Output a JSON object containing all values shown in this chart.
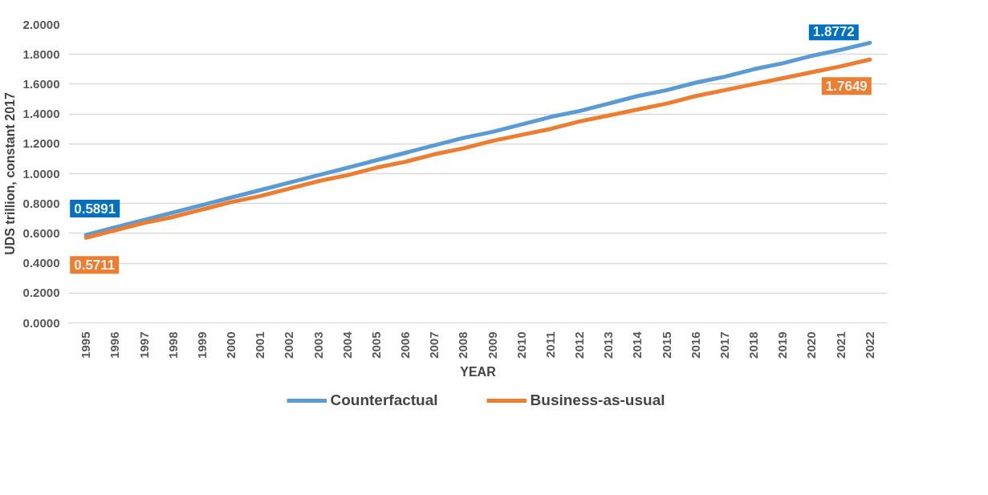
{
  "chart_data": {
    "type": "line",
    "xlabel": "YEAR",
    "ylabel": "UDS trillion, constant 2017",
    "categories": [
      "1995",
      "1996",
      "1997",
      "1998",
      "1999",
      "2000",
      "2001",
      "2002",
      "2003",
      "2004",
      "2005",
      "2006",
      "2007",
      "2008",
      "2009",
      "2010",
      "2011",
      "2012",
      "2013",
      "2014",
      "2015",
      "2016",
      "2017",
      "2018",
      "2019",
      "2020",
      "2021",
      "2022"
    ],
    "series": [
      {
        "name": "Counterfactual",
        "color": "#5b9bd5",
        "values": [
          0.5891,
          0.64,
          0.69,
          0.74,
          0.79,
          0.84,
          0.89,
          0.94,
          0.99,
          1.04,
          1.09,
          1.14,
          1.19,
          1.24,
          1.28,
          1.33,
          1.38,
          1.42,
          1.47,
          1.52,
          1.56,
          1.61,
          1.65,
          1.7,
          1.74,
          1.79,
          1.83,
          1.8772
        ],
        "value_labels": [
          "0.5891",
          null,
          null,
          null,
          null,
          null,
          null,
          null,
          null,
          null,
          null,
          null,
          null,
          null,
          null,
          null,
          null,
          null,
          null,
          null,
          null,
          null,
          null,
          null,
          null,
          null,
          null,
          "1.8772"
        ]
      },
      {
        "name": "Business-as-usual",
        "color": "#ed7d31",
        "values": [
          0.5711,
          0.62,
          0.67,
          0.71,
          0.76,
          0.81,
          0.85,
          0.9,
          0.95,
          0.99,
          1.04,
          1.08,
          1.13,
          1.17,
          1.22,
          1.26,
          1.3,
          1.35,
          1.39,
          1.43,
          1.47,
          1.52,
          1.56,
          1.6,
          1.64,
          1.68,
          1.72,
          1.7649
        ],
        "value_labels": [
          "0.5711",
          null,
          null,
          null,
          null,
          null,
          null,
          null,
          null,
          null,
          null,
          null,
          null,
          null,
          null,
          null,
          null,
          null,
          null,
          null,
          null,
          null,
          null,
          null,
          null,
          null,
          null,
          "1.7649"
        ]
      }
    ],
    "ylim": [
      0,
      2
    ],
    "yticks": [
      {
        "value": 0,
        "label": "0.0000"
      },
      {
        "value": 0.2,
        "label": "0.2000"
      },
      {
        "value": 0.4,
        "label": "0.4000"
      },
      {
        "value": 0.6,
        "label": "0.6000"
      },
      {
        "value": 0.8,
        "label": "0.8000"
      },
      {
        "value": 1.0,
        "label": "1.0000"
      },
      {
        "value": 1.2,
        "label": "1.2000"
      },
      {
        "value": 1.4,
        "label": "1.4000"
      },
      {
        "value": 1.6,
        "label": "1.6000"
      },
      {
        "value": 1.8,
        "label": "1.8000"
      },
      {
        "value": 2.0,
        "label": "2.0000"
      }
    ],
    "grid": "y",
    "legend": "bottom",
    "marker": "none",
    "line_style": "solid"
  }
}
